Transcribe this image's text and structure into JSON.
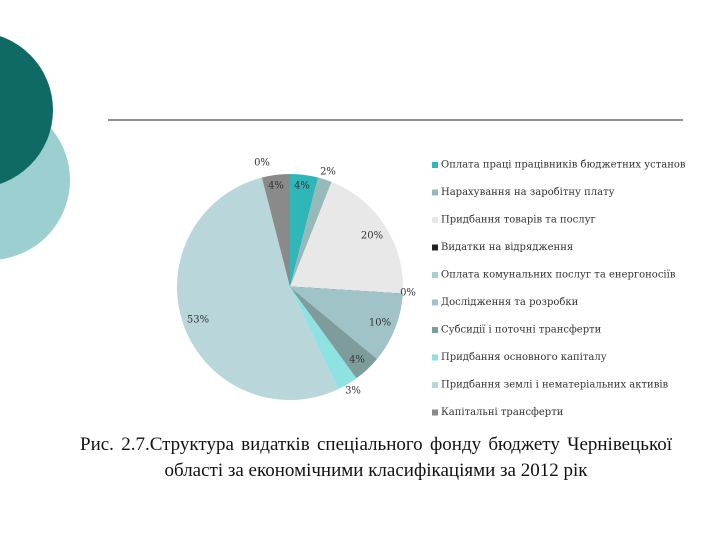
{
  "chart_data": {
    "type": "pie",
    "categories": [
      "Оплата праці працівників бюджетних установ",
      "Нарахування на заробітну плату",
      "Придбання товарів та послуг",
      "Видатки на відрядження",
      "Оплата комунальних послуг та енергоносіїв",
      "Дослідження та розробки",
      "Субсидії і поточні трансферти",
      "Придбання основного капіталу",
      "Придбання землі і нематеріальних активів",
      "Капітальні трансферти"
    ],
    "values": [
      4,
      2,
      20,
      0,
      0,
      10,
      4,
      3,
      53,
      4
    ],
    "value_labels": [
      "4%",
      "2%",
      "20%",
      "0%",
      "0%",
      "10%",
      "4%",
      "3%",
      "53%",
      "4%"
    ],
    "colors": [
      "#2fb6b9",
      "#96b9ba",
      "#e8e8e8",
      "#222222",
      "#a6cfd1",
      "#9fc3c6",
      "#7f9c9c",
      "#8fe2e2",
      "#b9d7db",
      "#8a8a8a"
    ]
  },
  "caption": "Рис. 2.7.Структура видатків спеціального фонду бюджету Чернівецької області за економічними класифікаціями за 2012 рік"
}
